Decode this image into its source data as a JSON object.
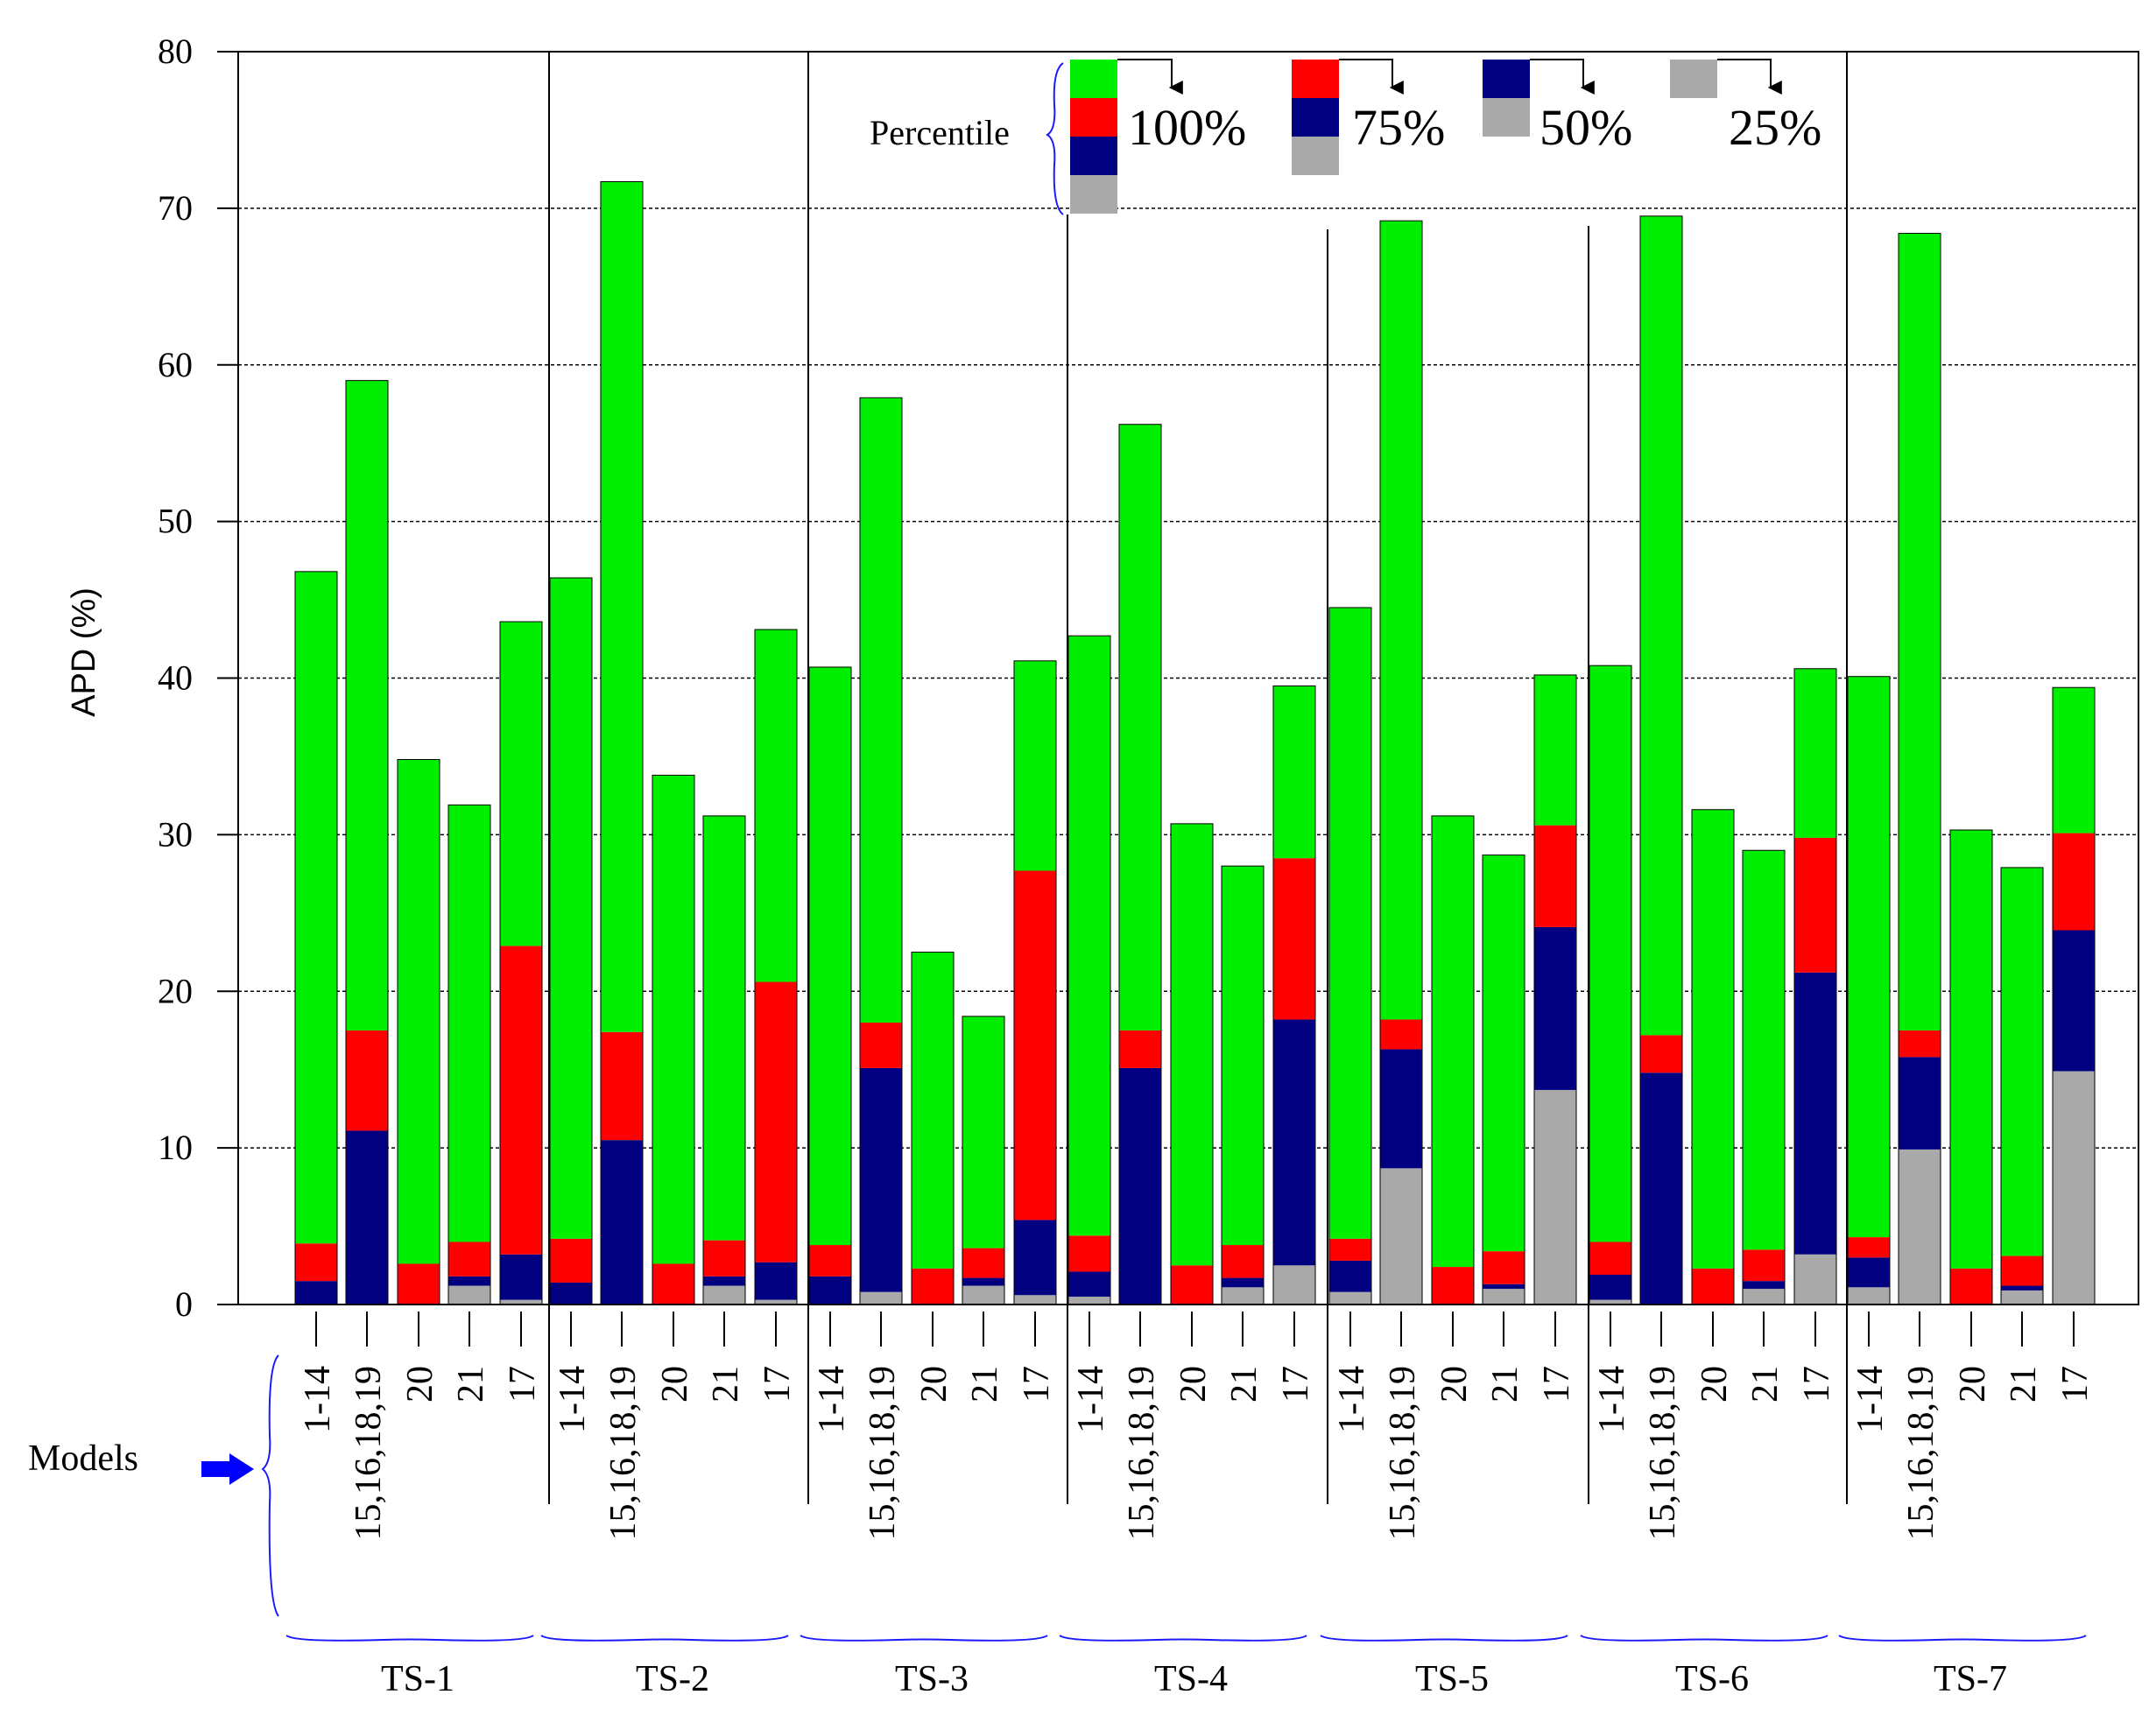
{
  "chart_data": {
    "type": "bar",
    "stacked": true,
    "ylabel": "APD (%)",
    "ylim": [
      0,
      80
    ],
    "yticks": [
      0,
      10,
      20,
      30,
      40,
      50,
      60,
      70,
      80
    ],
    "grid": "horizontal dashed",
    "models_label": "Models",
    "legend": {
      "title": "Percentile",
      "position": "top-right",
      "entries": [
        {
          "label": "100%",
          "colors": [
            "#00ee00",
            "#ff0000",
            "#000080",
            "#a9a9a9"
          ]
        },
        {
          "label": "75%",
          "colors": [
            "#ff0000",
            "#000080",
            "#a9a9a9"
          ]
        },
        {
          "label": "50%",
          "colors": [
            "#000080",
            "#a9a9a9"
          ]
        },
        {
          "label": "25%",
          "colors": [
            "#a9a9a9"
          ]
        }
      ]
    },
    "colors": {
      "p100": "#00ee00",
      "p75": "#ff0000",
      "p50": "#000080",
      "p25": "#a9a9a9"
    },
    "categories": [
      "1-14",
      "15,16,18,19",
      "20",
      "21",
      "17"
    ],
    "groups": [
      {
        "name": "TS-1",
        "bars": [
          {
            "model": "1-14",
            "p25": 0.0,
            "p50": 1.5,
            "p75": 3.9,
            "p100": 46.8
          },
          {
            "model": "15,16,18,19",
            "p25": 0.0,
            "p50": 11.1,
            "p75": 17.5,
            "p100": 59.0
          },
          {
            "model": "20",
            "p25": 0.0,
            "p50": 0.0,
            "p75": 2.6,
            "p100": 34.8
          },
          {
            "model": "21",
            "p25": 1.2,
            "p50": 1.8,
            "p75": 4.0,
            "p100": 31.9
          },
          {
            "model": "17",
            "p25": 0.3,
            "p50": 3.2,
            "p75": 22.9,
            "p100": 43.6
          }
        ]
      },
      {
        "name": "TS-2",
        "bars": [
          {
            "model": "1-14",
            "p25": 0.0,
            "p50": 1.4,
            "p75": 4.2,
            "p100": 46.4
          },
          {
            "model": "15,16,18,19",
            "p25": 0.0,
            "p50": 10.5,
            "p75": 17.4,
            "p100": 71.7
          },
          {
            "model": "20",
            "p25": 0.0,
            "p50": 0.0,
            "p75": 2.6,
            "p100": 33.8
          },
          {
            "model": "21",
            "p25": 1.2,
            "p50": 1.8,
            "p75": 4.1,
            "p100": 31.2
          },
          {
            "model": "17",
            "p25": 0.3,
            "p50": 2.7,
            "p75": 20.6,
            "p100": 43.1
          }
        ]
      },
      {
        "name": "TS-3",
        "bars": [
          {
            "model": "1-14",
            "p25": 0.0,
            "p50": 1.8,
            "p75": 3.8,
            "p100": 40.7
          },
          {
            "model": "15,16,18,19",
            "p25": 0.8,
            "p50": 15.1,
            "p75": 18.0,
            "p100": 57.9
          },
          {
            "model": "20",
            "p25": 0.0,
            "p50": 0.0,
            "p75": 2.3,
            "p100": 22.5
          },
          {
            "model": "21",
            "p25": 1.2,
            "p50": 1.7,
            "p75": 3.6,
            "p100": 18.4
          },
          {
            "model": "17",
            "p25": 0.6,
            "p50": 5.4,
            "p75": 27.7,
            "p100": 41.1
          }
        ]
      },
      {
        "name": "TS-4",
        "bars": [
          {
            "model": "1-14",
            "p25": 0.5,
            "p50": 2.1,
            "p75": 4.4,
            "p100": 42.7
          },
          {
            "model": "15,16,18,19",
            "p25": 0.0,
            "p50": 15.1,
            "p75": 17.5,
            "p100": 56.2
          },
          {
            "model": "20",
            "p25": 0.0,
            "p50": 0.0,
            "p75": 2.5,
            "p100": 30.7
          },
          {
            "model": "21",
            "p25": 1.1,
            "p50": 1.7,
            "p75": 3.8,
            "p100": 28.0
          },
          {
            "model": "17",
            "p25": 2.5,
            "p50": 18.2,
            "p75": 28.5,
            "p100": 39.5
          }
        ]
      },
      {
        "name": "TS-5",
        "bars": [
          {
            "model": "1-14",
            "p25": 0.8,
            "p50": 2.8,
            "p75": 4.2,
            "p100": 44.5
          },
          {
            "model": "15,16,18,19",
            "p25": 8.7,
            "p50": 16.3,
            "p75": 18.2,
            "p100": 69.2
          },
          {
            "model": "20",
            "p25": 0.0,
            "p50": 0.0,
            "p75": 2.4,
            "p100": 31.2
          },
          {
            "model": "21",
            "p25": 1.0,
            "p50": 1.3,
            "p75": 3.4,
            "p100": 28.7
          },
          {
            "model": "17",
            "p25": 13.7,
            "p50": 24.1,
            "p75": 30.6,
            "p100": 40.2
          }
        ]
      },
      {
        "name": "TS-6",
        "bars": [
          {
            "model": "1-14",
            "p25": 0.3,
            "p50": 1.9,
            "p75": 4.0,
            "p100": 40.8
          },
          {
            "model": "15,16,18,19",
            "p25": 0.0,
            "p50": 14.8,
            "p75": 17.2,
            "p100": 69.5
          },
          {
            "model": "20",
            "p25": 0.0,
            "p50": 0.0,
            "p75": 2.3,
            "p100": 31.6
          },
          {
            "model": "21",
            "p25": 1.0,
            "p50": 1.5,
            "p75": 3.5,
            "p100": 29.0
          },
          {
            "model": "17",
            "p25": 3.2,
            "p50": 21.2,
            "p75": 29.8,
            "p100": 40.6
          }
        ]
      },
      {
        "name": "TS-7",
        "bars": [
          {
            "model": "1-14",
            "p25": 1.1,
            "p50": 3.0,
            "p75": 4.3,
            "p100": 40.1
          },
          {
            "model": "15,16,18,19",
            "p25": 9.9,
            "p50": 15.8,
            "p75": 17.5,
            "p100": 68.4
          },
          {
            "model": "20",
            "p25": 0.0,
            "p50": 0.0,
            "p75": 2.3,
            "p100": 30.3
          },
          {
            "model": "21",
            "p25": 0.9,
            "p50": 1.2,
            "p75": 3.1,
            "p100": 27.9
          },
          {
            "model": "17",
            "p25": 14.9,
            "p50": 23.9,
            "p75": 30.1,
            "p100": 39.4
          }
        ]
      }
    ]
  }
}
